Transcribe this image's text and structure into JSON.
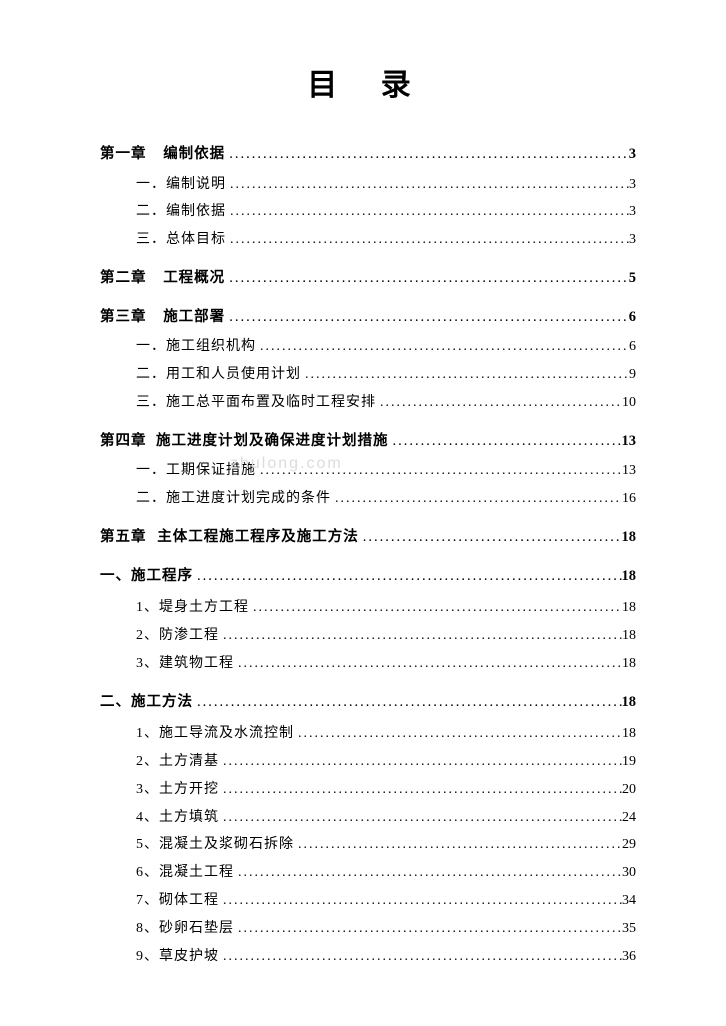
{
  "title": "目 录",
  "watermark": "zhulong.com",
  "entries": [
    {
      "type": "chapter",
      "prefix": "第一章",
      "gap": true,
      "text": "编制依据",
      "page": "3"
    },
    {
      "type": "sub",
      "prefix": "一．",
      "text": "编制说明",
      "page": "3"
    },
    {
      "type": "sub",
      "prefix": "二．",
      "text": "编制依据",
      "page": "3"
    },
    {
      "type": "sub",
      "prefix": "三．",
      "text": "总体目标",
      "page": "3"
    },
    {
      "type": "chapter",
      "prefix": "第二章",
      "gap": true,
      "text": "工程概况",
      "page": "5"
    },
    {
      "type": "chapter",
      "prefix": "第三章",
      "gap": true,
      "text": "施工部署",
      "page": "6"
    },
    {
      "type": "sub",
      "prefix": "一．",
      "text": "施工组织机构",
      "page": "6"
    },
    {
      "type": "sub",
      "prefix": "二．",
      "text": "用工和人员使用计划",
      "page": "9"
    },
    {
      "type": "sub",
      "prefix": "三．",
      "text": "施工总平面布置及临时工程安排",
      "page": "10"
    },
    {
      "type": "chapter",
      "prefix": "第四章",
      "gap": true,
      "text": "施工进度计划及确保进度计划措施",
      "page": "13"
    },
    {
      "type": "sub",
      "prefix": "一．",
      "text": "工期保证措施",
      "page": "13"
    },
    {
      "type": "sub",
      "prefix": "二．",
      "text": "施工进度计划完成的条件",
      "page": "16"
    },
    {
      "type": "chapter",
      "prefix": "第五章",
      "gap": true,
      "text": "主体工程施工程序及施工方法",
      "page": "18"
    },
    {
      "type": "sec1",
      "prefix": "一、",
      "text": "施工程序",
      "page": "18"
    },
    {
      "type": "num",
      "prefix": "1、",
      "text": "堤身土方工程",
      "page": "18"
    },
    {
      "type": "num",
      "prefix": "2、",
      "text": "防渗工程",
      "page": "18"
    },
    {
      "type": "num",
      "prefix": "3、",
      "text": "建筑物工程",
      "page": "18"
    },
    {
      "type": "sec1",
      "prefix": "二、",
      "text": "施工方法",
      "page": "18"
    },
    {
      "type": "num",
      "prefix": "1、",
      "text": "施工导流及水流控制",
      "page": "18"
    },
    {
      "type": "num",
      "prefix": "2、",
      "text": "土方清基",
      "page": "19"
    },
    {
      "type": "num",
      "prefix": "3、",
      "text": "土方开挖",
      "page": "20"
    },
    {
      "type": "num",
      "prefix": "4、",
      "text": "土方填筑",
      "page": "24"
    },
    {
      "type": "num",
      "prefix": "5、",
      "text": "混凝土及浆砌石拆除",
      "page": "29"
    },
    {
      "type": "num",
      "prefix": "6、",
      "text": "混凝土工程",
      "page": "30"
    },
    {
      "type": "num",
      "prefix": "7、",
      "text": "砌体工程",
      "page": "34"
    },
    {
      "type": "num",
      "prefix": "8、",
      "text": "砂卵石垫层",
      "page": "35"
    },
    {
      "type": "num",
      "prefix": "9、",
      "text": "草皮护坡",
      "page": "36"
    }
  ]
}
